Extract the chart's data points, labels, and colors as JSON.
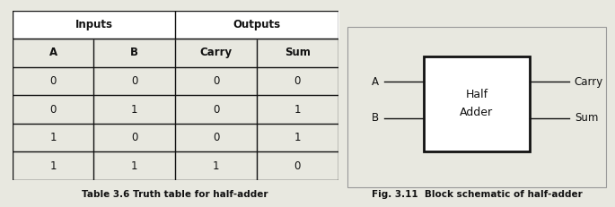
{
  "table_caption": "Table 3.6 Truth table for half-adder",
  "diagram_caption": "Fig. 3.11  Block schematic of half-adder",
  "col_headers": [
    "A",
    "B",
    "Carry",
    "Sum"
  ],
  "group_headers": [
    "Inputs",
    "Outputs"
  ],
  "rows": [
    [
      0,
      0,
      0,
      0
    ],
    [
      0,
      1,
      0,
      1
    ],
    [
      1,
      0,
      0,
      1
    ],
    [
      1,
      1,
      1,
      0
    ]
  ],
  "box_label_line1": "Half",
  "box_label_line2": "Adder",
  "input_labels": [
    "A",
    "B"
  ],
  "output_labels": [
    "Carry",
    "Sum"
  ],
  "bg_color": "#e8e8e0",
  "table_bg": "#ffffff",
  "border_color": "#111111",
  "text_color": "#111111",
  "caption_color": "#111111",
  "font_size_header": 8.5,
  "font_size_data": 8.5,
  "font_size_caption": 7.5,
  "font_size_box": 9,
  "font_size_io": 8.5
}
